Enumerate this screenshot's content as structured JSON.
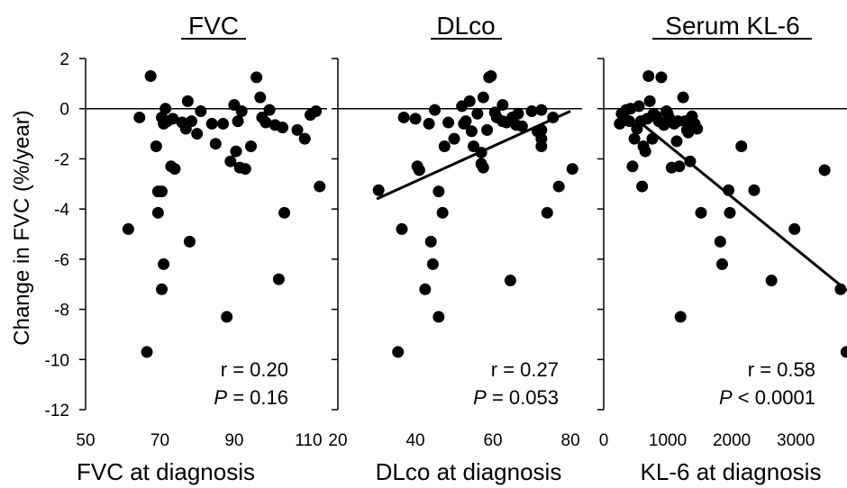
{
  "shared": {
    "ylabel": "Change in FVC (%/year)",
    "ylim": [
      -12,
      2
    ],
    "yticks": [
      "2",
      "0",
      "-2",
      "-4",
      "-6",
      "-8",
      "-10",
      "-12"
    ]
  },
  "chart_data": [
    {
      "type": "scatter",
      "title": "FVC",
      "xlabel": "FVC at diagnosis",
      "xlim": [
        50,
        115
      ],
      "xticks": [
        "50",
        "70",
        "90",
        "110"
      ],
      "stats": {
        "r_text": "r = 0.20",
        "p_symbol": "P",
        "p_text": " = 0.16"
      },
      "reference_line_y": 0,
      "regression": null,
      "points": [
        {
          "x": 61.5,
          "y": -4.8
        },
        {
          "x": 64.5,
          "y": -0.35
        },
        {
          "x": 66.5,
          "y": -9.7
        },
        {
          "x": 67.5,
          "y": 1.3
        },
        {
          "x": 69,
          "y": -1.5
        },
        {
          "x": 69.5,
          "y": -3.3
        },
        {
          "x": 69.5,
          "y": -4.15
        },
        {
          "x": 70.5,
          "y": -3.3
        },
        {
          "x": 70.5,
          "y": -7.2
        },
        {
          "x": 70.5,
          "y": -0.35
        },
        {
          "x": 71,
          "y": -0.6
        },
        {
          "x": 71,
          "y": -6.2
        },
        {
          "x": 71.5,
          "y": 0
        },
        {
          "x": 72,
          "y": -0.5
        },
        {
          "x": 73,
          "y": -2.3
        },
        {
          "x": 73.5,
          "y": -0.4
        },
        {
          "x": 74,
          "y": -2.4
        },
        {
          "x": 76,
          "y": -0.55
        },
        {
          "x": 77,
          "y": -0.8
        },
        {
          "x": 77.5,
          "y": 0.3
        },
        {
          "x": 78,
          "y": -5.3
        },
        {
          "x": 78.5,
          "y": -0.5
        },
        {
          "x": 80,
          "y": -1
        },
        {
          "x": 81,
          "y": -0.1
        },
        {
          "x": 84,
          "y": -0.6
        },
        {
          "x": 85,
          "y": -1.4
        },
        {
          "x": 87,
          "y": -0.6
        },
        {
          "x": 88,
          "y": -8.3
        },
        {
          "x": 89,
          "y": -2.1
        },
        {
          "x": 90,
          "y": 0.15
        },
        {
          "x": 90.5,
          "y": -1.7
        },
        {
          "x": 91,
          "y": -0.5
        },
        {
          "x": 91.5,
          "y": -2.35
        },
        {
          "x": 92,
          "y": -0.1
        },
        {
          "x": 93,
          "y": -2.4
        },
        {
          "x": 94.5,
          "y": -1.5
        },
        {
          "x": 96,
          "y": 1.25
        },
        {
          "x": 97,
          "y": 0.45
        },
        {
          "x": 97.5,
          "y": -0.35
        },
        {
          "x": 98.5,
          "y": -0.55
        },
        {
          "x": 99.5,
          "y": -0.05
        },
        {
          "x": 101,
          "y": -0.65
        },
        {
          "x": 102,
          "y": -6.8
        },
        {
          "x": 103,
          "y": -0.75
        },
        {
          "x": 103.5,
          "y": -4.15
        },
        {
          "x": 107,
          "y": -0.85
        },
        {
          "x": 109,
          "y": -1.2
        },
        {
          "x": 110.5,
          "y": -0.25
        },
        {
          "x": 112,
          "y": -0.1
        },
        {
          "x": 113,
          "y": -3.1
        }
      ]
    },
    {
      "type": "scatter",
      "title": "DLco",
      "xlabel": "DLco at diagnosis",
      "xlim": [
        20,
        83
      ],
      "xticks": [
        "20",
        "40",
        "60",
        "80"
      ],
      "stats": {
        "r_text": "r = 0.27",
        "p_symbol": "P",
        "p_text": " = 0.053"
      },
      "reference_line_y": 0,
      "regression": {
        "x": [
          30,
          80
        ],
        "y": [
          -3.6,
          -0.1
        ]
      },
      "points": [
        {
          "x": 30.5,
          "y": -3.25
        },
        {
          "x": 35.5,
          "y": -9.7
        },
        {
          "x": 36.5,
          "y": -4.8
        },
        {
          "x": 37,
          "y": -0.35
        },
        {
          "x": 40,
          "y": -0.4
        },
        {
          "x": 40.5,
          "y": -2.3
        },
        {
          "x": 41,
          "y": -2.45
        },
        {
          "x": 42.5,
          "y": -7.2
        },
        {
          "x": 43.5,
          "y": -0.6
        },
        {
          "x": 44,
          "y": -5.3
        },
        {
          "x": 44.5,
          "y": -6.2
        },
        {
          "x": 45,
          "y": -0.05
        },
        {
          "x": 46,
          "y": -3.3
        },
        {
          "x": 46,
          "y": -8.3
        },
        {
          "x": 47,
          "y": -4.15
        },
        {
          "x": 47.5,
          "y": -1.5
        },
        {
          "x": 48.5,
          "y": -0.55
        },
        {
          "x": 50,
          "y": -1.2
        },
        {
          "x": 52,
          "y": 0.1
        },
        {
          "x": 52.5,
          "y": -0.6
        },
        {
          "x": 53,
          "y": -0.5
        },
        {
          "x": 54,
          "y": 0.3
        },
        {
          "x": 54.5,
          "y": -0.9
        },
        {
          "x": 55,
          "y": -1.5
        },
        {
          "x": 56,
          "y": -0.2
        },
        {
          "x": 57,
          "y": -1.75
        },
        {
          "x": 57,
          "y": -2.2
        },
        {
          "x": 57.5,
          "y": -2.35
        },
        {
          "x": 57.5,
          "y": 0.45
        },
        {
          "x": 58.5,
          "y": -0.85
        },
        {
          "x": 59,
          "y": 1.25
        },
        {
          "x": 59.5,
          "y": 1.3
        },
        {
          "x": 60.5,
          "y": -0.15
        },
        {
          "x": 61,
          "y": -0.35
        },
        {
          "x": 62.5,
          "y": -0.5
        },
        {
          "x": 62.5,
          "y": 0.15
        },
        {
          "x": 63.5,
          "y": -0.55
        },
        {
          "x": 64.5,
          "y": -6.85
        },
        {
          "x": 65,
          "y": -0.35
        },
        {
          "x": 66,
          "y": -0.65
        },
        {
          "x": 66.5,
          "y": -0.2
        },
        {
          "x": 67.5,
          "y": -0.7
        },
        {
          "x": 70,
          "y": -0.1
        },
        {
          "x": 71.5,
          "y": -0.9
        },
        {
          "x": 72.5,
          "y": -0.05
        },
        {
          "x": 72.5,
          "y": -0.85
        },
        {
          "x": 72.5,
          "y": -1.2
        },
        {
          "x": 72.5,
          "y": -1.5
        },
        {
          "x": 74,
          "y": -4.15
        },
        {
          "x": 75.5,
          "y": -0.35
        },
        {
          "x": 77,
          "y": -3.1
        },
        {
          "x": 80.5,
          "y": -2.4
        }
      ]
    },
    {
      "type": "scatter",
      "title": "Serum KL-6",
      "xlabel": "KL-6 at diagnosis",
      "xlim": [
        0,
        3800
      ],
      "xticks": [
        "0",
        "1000",
        "2000",
        "3000"
      ],
      "stats": {
        "r_text": "r = 0.58",
        "p_symbol": "P",
        "p_text": " < 0.0001"
      },
      "reference_line_y": 0,
      "regression": {
        "x": [
          570,
          3800
        ],
        "y": [
          -0.55,
          -7.25
        ]
      },
      "points": [
        {
          "x": 250,
          "y": -0.6
        },
        {
          "x": 280,
          "y": -0.2
        },
        {
          "x": 350,
          "y": -0.05
        },
        {
          "x": 400,
          "y": -0.5
        },
        {
          "x": 420,
          "y": 0
        },
        {
          "x": 450,
          "y": -2.3
        },
        {
          "x": 480,
          "y": -1.2
        },
        {
          "x": 520,
          "y": -0.8
        },
        {
          "x": 550,
          "y": 0.1
        },
        {
          "x": 580,
          "y": -0.5
        },
        {
          "x": 600,
          "y": -3.1
        },
        {
          "x": 620,
          "y": -1.5
        },
        {
          "x": 650,
          "y": -1.7
        },
        {
          "x": 680,
          "y": -0.4
        },
        {
          "x": 700,
          "y": 1.3
        },
        {
          "x": 720,
          "y": 0.3
        },
        {
          "x": 760,
          "y": -1.2
        },
        {
          "x": 780,
          "y": -0.2
        },
        {
          "x": 820,
          "y": -0.3
        },
        {
          "x": 860,
          "y": -0.5
        },
        {
          "x": 900,
          "y": 1.25
        },
        {
          "x": 940,
          "y": -0.65
        },
        {
          "x": 980,
          "y": -0.1
        },
        {
          "x": 1000,
          "y": -0.2
        },
        {
          "x": 1030,
          "y": -0.4
        },
        {
          "x": 1060,
          "y": -2.35
        },
        {
          "x": 1100,
          "y": -0.6
        },
        {
          "x": 1140,
          "y": -1.3
        },
        {
          "x": 1160,
          "y": -0.5
        },
        {
          "x": 1180,
          "y": -2.3
        },
        {
          "x": 1200,
          "y": -8.3
        },
        {
          "x": 1240,
          "y": 0.45
        },
        {
          "x": 1270,
          "y": -0.5
        },
        {
          "x": 1300,
          "y": -0.85
        },
        {
          "x": 1320,
          "y": -0.95
        },
        {
          "x": 1350,
          "y": -2.1
        },
        {
          "x": 1380,
          "y": -0.3
        },
        {
          "x": 1420,
          "y": -0.6
        },
        {
          "x": 1460,
          "y": -0.8
        },
        {
          "x": 1520,
          "y": -4.15
        },
        {
          "x": 1820,
          "y": -5.3
        },
        {
          "x": 1850,
          "y": -6.2
        },
        {
          "x": 1950,
          "y": -3.25
        },
        {
          "x": 1970,
          "y": -4.15
        },
        {
          "x": 2150,
          "y": -1.5
        },
        {
          "x": 2350,
          "y": -3.25
        },
        {
          "x": 2620,
          "y": -6.85
        },
        {
          "x": 2980,
          "y": -4.8
        },
        {
          "x": 3450,
          "y": -2.45
        },
        {
          "x": 3700,
          "y": -7.2
        },
        {
          "x": 3790,
          "y": -9.7
        }
      ]
    }
  ]
}
